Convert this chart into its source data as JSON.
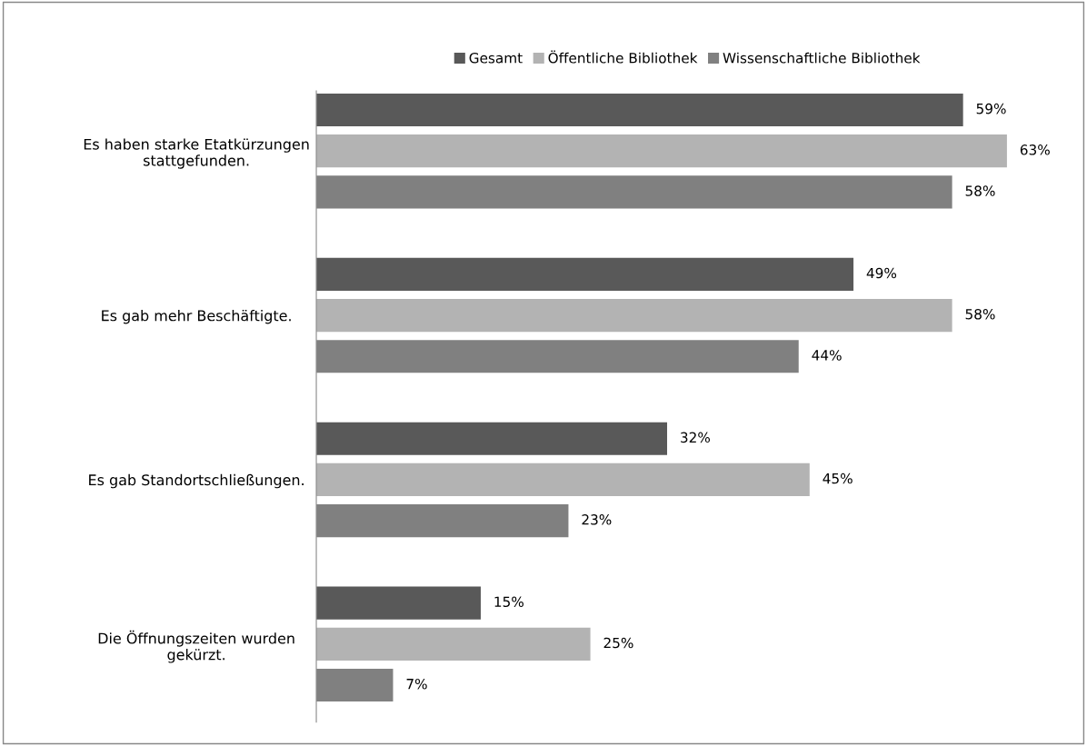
{
  "chart_data": {
    "type": "bar",
    "orientation": "horizontal",
    "categories": [
      "Es haben starke Etatkürzungen\nstattgefunden.",
      "Es gab mehr Beschäftigte.",
      "Es gab Standortschließungen.",
      "Die Öffnungszeiten wurden\ngekürzt."
    ],
    "series": [
      {
        "name": "Gesamt",
        "color": "#595959",
        "values": [
          59,
          49,
          32,
          15
        ],
        "value_labels": [
          "59%",
          "49%",
          "32%",
          "15%"
        ]
      },
      {
        "name": "Öffentliche Bibliothek",
        "color": "#b3b3b3",
        "values": [
          63,
          58,
          45,
          25
        ],
        "value_labels": [
          "63%",
          "58%",
          "45%",
          "25%"
        ]
      },
      {
        "name": "Wissenschaftliche Bibliothek",
        "color": "#808080",
        "values": [
          58,
          44,
          23,
          7
        ],
        "value_labels": [
          "58%",
          "44%",
          "23%",
          "7%"
        ]
      }
    ],
    "legend": "top",
    "grid": false
  }
}
